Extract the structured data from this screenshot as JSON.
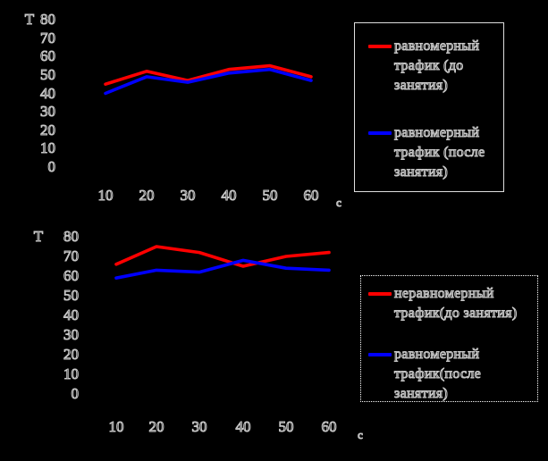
{
  "background_color": "#000000",
  "colors": {
    "series_red": "#ff0000",
    "series_blue": "#0000ff",
    "text_halo": "#c9c9c9",
    "legend_border": "#ffffff"
  },
  "chart_data": [
    {
      "type": "line",
      "position": "top",
      "title": "",
      "y_axis_label": "Т",
      "x_axis_unit": "с",
      "x": [
        10,
        20,
        30,
        40,
        50,
        60
      ],
      "y_ticks": [
        0,
        10,
        20,
        30,
        40,
        50,
        60,
        70,
        80
      ],
      "ylim": [
        0,
        80
      ],
      "grid": false,
      "legend_position": "right",
      "series": [
        {
          "name": "равномерный трафик (до занятия)",
          "color": "#ff0000",
          "values": [
            45,
            52,
            47,
            53,
            55,
            49
          ]
        },
        {
          "name": "равномерный трафик (после занятия)",
          "color": "#0000ff",
          "values": [
            40,
            49,
            46,
            51,
            53,
            47
          ]
        }
      ]
    },
    {
      "type": "line",
      "position": "bottom",
      "title": "",
      "y_axis_label": "Т",
      "x_axis_unit": "с",
      "x": [
        10,
        20,
        30,
        40,
        50,
        60
      ],
      "y_ticks": [
        0,
        10,
        20,
        30,
        40,
        50,
        60,
        70,
        80
      ],
      "ylim": [
        0,
        80
      ],
      "grid": false,
      "legend_position": "right",
      "series": [
        {
          "name": "неравномерный трафик(до занятия)",
          "color": "#ff0000",
          "values": [
            66,
            75,
            72,
            65,
            70,
            72
          ]
        },
        {
          "name": "равномерный трафик(после занятия)",
          "color": "#0000ff",
          "values": [
            59,
            63,
            62,
            68,
            64,
            63
          ]
        }
      ]
    }
  ]
}
